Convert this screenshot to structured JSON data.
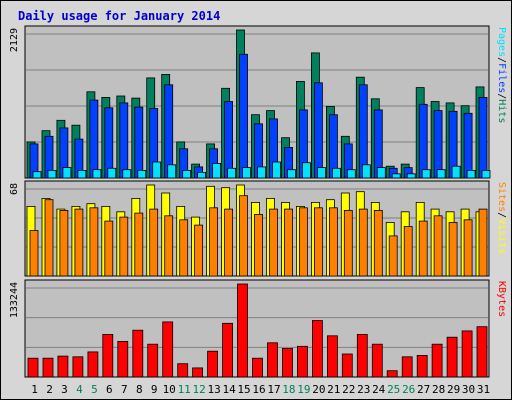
{
  "title": "Daily usage for January 2014",
  "colors": {
    "title": "#0000cc",
    "hits": "#00805c",
    "files": "#0040ff",
    "pages": "#00e0ff",
    "visits": "#ffff00",
    "sites": "#ff8000",
    "kbytes": "#ff0000",
    "weekend_label": "#00805c",
    "weekday_label": "#000000",
    "plot_bg": "#c0c0c0",
    "frame_bg": "#d6d6d6"
  },
  "chart_data": [
    {
      "type": "bar",
      "panel": "hits-files-pages",
      "categories": [
        "1",
        "2",
        "3",
        "4",
        "5",
        "6",
        "7",
        "8",
        "9",
        "10",
        "11",
        "12",
        "13",
        "14",
        "15",
        "16",
        "17",
        "18",
        "19",
        "20",
        "21",
        "22",
        "23",
        "24",
        "25",
        "26",
        "27",
        "28",
        "29",
        "30",
        "31"
      ],
      "weekend_days": [
        "4",
        "5",
        "11",
        "12",
        "18",
        "19",
        "25",
        "26"
      ],
      "ymax_label": "2129",
      "ylim": [
        0,
        2129
      ],
      "legend": [
        {
          "label": "Pages",
          "color": "#00e0ff"
        },
        {
          "label": "Files",
          "color": "#0040ff"
        },
        {
          "label": "Hits",
          "color": "#00805c"
        }
      ],
      "legend_separators": [
        "/",
        "/"
      ],
      "series": [
        {
          "name": "Hits",
          "values": [
            520,
            680,
            830,
            760,
            1240,
            1160,
            1180,
            1150,
            1440,
            1490,
            520,
            200,
            490,
            1290,
            2129,
            910,
            970,
            580,
            1390,
            1800,
            1030,
            600,
            1450,
            1140,
            170,
            200,
            1300,
            1100,
            1080,
            1040,
            1310
          ]
        },
        {
          "name": "Files",
          "values": [
            490,
            600,
            720,
            560,
            1120,
            1010,
            1080,
            1020,
            1000,
            1340,
            420,
            160,
            420,
            1100,
            1780,
            780,
            850,
            440,
            980,
            1370,
            910,
            490,
            1340,
            980,
            140,
            150,
            1060,
            970,
            960,
            930,
            1160
          ]
        },
        {
          "name": "Pages",
          "values": [
            90,
            110,
            150,
            110,
            120,
            140,
            120,
            110,
            230,
            190,
            110,
            80,
            210,
            140,
            150,
            160,
            230,
            120,
            220,
            150,
            140,
            120,
            190,
            150,
            60,
            60,
            120,
            120,
            170,
            110,
            110
          ]
        }
      ]
    },
    {
      "type": "bar",
      "panel": "visits-sites",
      "categories": [
        "1",
        "2",
        "3",
        "4",
        "5",
        "6",
        "7",
        "8",
        "9",
        "10",
        "11",
        "12",
        "13",
        "14",
        "15",
        "16",
        "17",
        "18",
        "19",
        "20",
        "21",
        "22",
        "23",
        "24",
        "25",
        "26",
        "27",
        "28",
        "29",
        "30",
        "31"
      ],
      "ymax_label": "68",
      "ylim": [
        0,
        68
      ],
      "legend": [
        {
          "label": "Sites",
          "color": "#ff8000"
        },
        {
          "label": "Visits",
          "color": "#ffff00"
        }
      ],
      "legend_separators": [
        "/"
      ],
      "series": [
        {
          "name": "Visits",
          "values": [
            52,
            58,
            50,
            52,
            54,
            52,
            48,
            58,
            68,
            62,
            52,
            44,
            67,
            66,
            68,
            55,
            58,
            55,
            52,
            55,
            57,
            62,
            63,
            55,
            40,
            48,
            55,
            50,
            48,
            50,
            48
          ]
        },
        {
          "name": "Sites",
          "values": [
            34,
            57,
            49,
            50,
            51,
            41,
            44,
            47,
            50,
            45,
            42,
            38,
            51,
            50,
            60,
            46,
            50,
            50,
            51,
            51,
            51,
            49,
            50,
            49,
            30,
            37,
            41,
            45,
            40,
            42,
            50
          ]
        }
      ]
    },
    {
      "type": "bar",
      "panel": "kbytes",
      "categories": [
        "1",
        "2",
        "3",
        "4",
        "5",
        "6",
        "7",
        "8",
        "9",
        "10",
        "11",
        "12",
        "13",
        "14",
        "15",
        "16",
        "17",
        "18",
        "19",
        "20",
        "21",
        "22",
        "23",
        "24",
        "25",
        "26",
        "27",
        "28",
        "29",
        "30",
        "31"
      ],
      "ymax_label": "133244",
      "ylim": [
        0,
        133244
      ],
      "legend": [
        {
          "label": "KBytes",
          "color": "#ff0000"
        }
      ],
      "series": [
        {
          "name": "KBytes",
          "values": [
            27000,
            27000,
            30000,
            29000,
            36000,
            61000,
            51000,
            67000,
            47000,
            79000,
            19000,
            13000,
            37000,
            77000,
            133244,
            27000,
            49000,
            41000,
            44000,
            81000,
            59000,
            33000,
            61000,
            47000,
            9000,
            29000,
            31000,
            47000,
            57000,
            66000,
            72000
          ]
        }
      ]
    }
  ]
}
